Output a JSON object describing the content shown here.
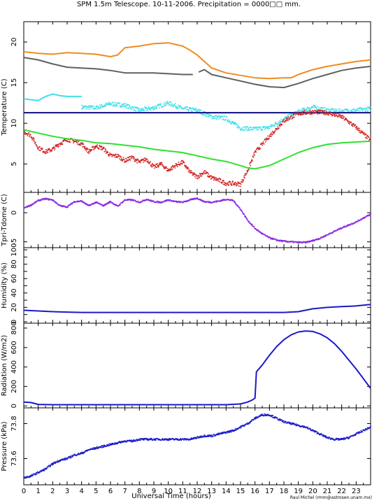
{
  "title": "SPM 1.5m Telescope. 10-11-2006. Precipitation = 0000□□ mm.",
  "credit": "Raul Michel (rmm@astrosen.unam.mx)",
  "xlabel": "Universal Time (hours)",
  "x_ticks": [
    0,
    1,
    2,
    3,
    4,
    5,
    6,
    7,
    8,
    9,
    10,
    11,
    12,
    13,
    14,
    15,
    16,
    17,
    18,
    19,
    20,
    21,
    22,
    23
  ],
  "colors": {
    "orange": "#f08c1e",
    "gray": "#606060",
    "cyan": "#40e0e8",
    "navy": "#101080",
    "red": "#d02020",
    "green": "#30e030",
    "purple": "#8a2be2",
    "blue": "#1a1ac8",
    "frame": "#000000"
  },
  "chart_data": [
    {
      "type": "line",
      "ylabel": "Temperature (C)",
      "ylim": [
        1.5,
        22.5
      ],
      "y_ticks": [
        5,
        10,
        15,
        20
      ],
      "xlim": [
        0,
        24
      ],
      "series": [
        {
          "color_key": "orange",
          "style": "line",
          "x": [
            0,
            1,
            2,
            3,
            4,
            5,
            6,
            6.5,
            7,
            8,
            9,
            10,
            11,
            11.5,
            12,
            12.5,
            13,
            14,
            15,
            16,
            17,
            18,
            18.5,
            19,
            20,
            21,
            22,
            23,
            24
          ],
          "y": [
            18.8,
            18.6,
            18.5,
            18.7,
            18.6,
            18.5,
            18.2,
            18.4,
            19.3,
            19.5,
            19.8,
            19.9,
            19.5,
            19.0,
            18.4,
            17.6,
            16.8,
            16.2,
            15.9,
            15.6,
            15.5,
            15.6,
            15.6,
            16.0,
            16.6,
            17.0,
            17.3,
            17.6,
            17.8
          ]
        },
        {
          "color_key": "gray",
          "style": "line",
          "x": [
            0,
            1,
            2,
            3,
            4,
            5,
            6,
            7,
            8,
            9,
            10,
            11,
            11.7
          ],
          "y": [
            18.1,
            17.8,
            17.3,
            16.9,
            16.8,
            16.7,
            16.5,
            16.2,
            16.2,
            16.2,
            16.1,
            16.0,
            16.0
          ]
        },
        {
          "color_key": "gray",
          "style": "line",
          "x": [
            12.1,
            12.5,
            13,
            14,
            15,
            16,
            17,
            18,
            19,
            20,
            21,
            22,
            23,
            24
          ],
          "y": [
            16.3,
            16.6,
            16.0,
            15.6,
            15.2,
            14.8,
            14.5,
            14.4,
            14.9,
            15.5,
            16.0,
            16.5,
            16.8,
            17.0
          ]
        },
        {
          "color_key": "cyan",
          "style": "line",
          "x": [
            0,
            1,
            1.5,
            2,
            2.5,
            3,
            3.5,
            4
          ],
          "y": [
            13.0,
            12.8,
            13.3,
            13.6,
            13.4,
            13.3,
            13.3,
            13.3
          ]
        },
        {
          "color_key": "cyan",
          "style": "scatter",
          "x": [
            4,
            5,
            6,
            7,
            8,
            9,
            10,
            11,
            12,
            13,
            14,
            15,
            16,
            17,
            18,
            19,
            20,
            21,
            22,
            23,
            24
          ],
          "y": [
            12.0,
            11.9,
            12.4,
            12.2,
            11.6,
            11.9,
            12.5,
            11.8,
            11.6,
            10.8,
            10.6,
            9.4,
            9.3,
            9.5,
            10.5,
            11.4,
            12.0,
            11.6,
            11.5,
            11.6,
            11.8
          ]
        },
        {
          "color_key": "navy",
          "style": "line",
          "x": [
            0,
            24
          ],
          "y": [
            11.3,
            11.3
          ]
        },
        {
          "color_key": "red",
          "style": "scatter",
          "x": [
            0,
            0.5,
            1,
            1.5,
            2,
            2.5,
            3,
            3.5,
            4,
            4.5,
            5,
            5.5,
            6,
            6.5,
            7,
            7.5,
            8,
            8.5,
            9,
            9.5,
            10,
            10.5,
            11,
            11.5,
            12,
            12.5,
            13,
            13.5,
            14,
            14.5,
            15,
            15.5,
            16,
            17,
            18,
            19,
            20,
            21,
            22,
            23,
            24
          ],
          "y": [
            9.0,
            8.5,
            7.0,
            6.5,
            6.8,
            7.5,
            8.0,
            7.8,
            7.5,
            6.5,
            7.2,
            6.9,
            6.0,
            6.0,
            5.4,
            5.8,
            5.2,
            5.6,
            4.6,
            5.0,
            4.2,
            4.8,
            5.2,
            4.0,
            3.4,
            4.0,
            3.3,
            3.0,
            2.6,
            2.6,
            2.5,
            4.2,
            6.4,
            8.4,
            10.3,
            11.2,
            11.4,
            11.3,
            10.8,
            9.5,
            7.9
          ]
        },
        {
          "color_key": "green",
          "style": "line",
          "x": [
            0,
            1,
            2,
            3,
            4,
            5,
            6,
            7,
            8,
            9,
            10,
            11,
            12,
            13,
            14,
            15,
            15.5,
            16,
            17,
            18,
            19,
            20,
            21,
            22,
            23,
            24
          ],
          "y": [
            9.2,
            8.8,
            8.4,
            8.1,
            7.9,
            7.6,
            7.5,
            7.3,
            7.1,
            6.8,
            6.6,
            6.4,
            6.0,
            5.6,
            5.3,
            4.8,
            4.5,
            4.4,
            4.8,
            5.6,
            6.4,
            7.0,
            7.4,
            7.6,
            7.7,
            7.8
          ]
        }
      ]
    },
    {
      "type": "scatter",
      "ylabel": "Tpri-Tdome (C)",
      "ylim": [
        -6,
        3.5
      ],
      "y_ticks": [
        -5,
        0
      ],
      "xlim": [
        0,
        24
      ],
      "series": [
        {
          "color_key": "purple",
          "style": "scatter",
          "x": [
            0,
            0.5,
            1,
            1.5,
            2,
            2.5,
            3,
            3.5,
            4,
            4.5,
            5,
            5.5,
            6,
            6.5,
            7,
            7.5,
            8,
            8.5,
            9,
            9.5,
            10,
            10.5,
            11,
            11.5,
            12,
            12.5,
            13,
            13.5,
            14,
            14.5,
            15,
            15.5,
            16,
            16.5,
            17,
            17.5,
            18,
            18.5,
            19,
            19.5,
            20,
            20.5,
            21,
            21.5,
            22,
            22.5,
            23,
            23.5,
            24
          ],
          "y": [
            0.8,
            1.3,
            2.1,
            2.4,
            2.2,
            1.2,
            1.0,
            1.9,
            2.0,
            1.2,
            1.8,
            1.2,
            1.9,
            1.1,
            2.2,
            2.2,
            1.8,
            2.3,
            1.9,
            1.8,
            2.2,
            1.9,
            1.8,
            2.2,
            2.5,
            1.9,
            1.8,
            2.0,
            2.3,
            2.1,
            0.6,
            -1.3,
            -2.7,
            -3.6,
            -4.3,
            -4.7,
            -4.9,
            -5.0,
            -5.1,
            -5.1,
            -4.8,
            -4.4,
            -3.8,
            -3.2,
            -2.6,
            -2.1,
            -1.6,
            -0.9,
            -0.3
          ]
        }
      ]
    },
    {
      "type": "line",
      "ylabel": "Humidity (%)",
      "ylim": [
        -2,
        103
      ],
      "y_ticks": [
        0,
        10,
        20,
        30,
        40,
        50,
        60,
        70,
        80,
        90,
        100
      ],
      "y_tick_labels_shown": [
        "0",
        "20",
        "40",
        "60",
        "80",
        "100"
      ],
      "xlim": [
        0,
        24
      ],
      "series": [
        {
          "color_key": "blue",
          "style": "line",
          "x": [
            0,
            1,
            2,
            3,
            4,
            5,
            6,
            8,
            10,
            12,
            14,
            16,
            17,
            18,
            19,
            20,
            21,
            22,
            23,
            24
          ],
          "y": [
            16,
            15,
            14,
            13.5,
            13,
            13,
            13,
            13,
            13,
            13,
            13,
            13,
            13,
            13,
            14,
            18,
            20,
            21,
            22,
            24
          ]
        }
      ]
    },
    {
      "type": "line",
      "ylabel": "Radiation (W/m2)",
      "ylim": [
        -20,
        850
      ],
      "y_ticks": [
        0,
        200,
        400,
        600,
        800
      ],
      "xlim": [
        0,
        24
      ],
      "series": [
        {
          "color_key": "blue",
          "style": "line",
          "x": [
            0,
            0.5,
            1,
            2,
            4,
            6,
            8,
            10,
            12,
            14,
            15,
            15.5,
            15.8,
            16,
            16.1,
            16.5,
            17,
            17.5,
            18,
            18.5,
            19,
            19.5,
            20,
            20.5,
            21,
            21.5,
            22,
            22.5,
            23,
            23.5,
            24
          ],
          "y": [
            40,
            35,
            15,
            12,
            12,
            12,
            12,
            12,
            12,
            12,
            20,
            40,
            60,
            80,
            350,
            420,
            520,
            610,
            680,
            730,
            760,
            770,
            765,
            740,
            700,
            640,
            560,
            470,
            380,
            280,
            180
          ]
        }
      ]
    },
    {
      "type": "scatter",
      "ylabel": "Pressure (kPa)",
      "ylim": [
        73.45,
        73.89
      ],
      "y_ticks": [
        73.6,
        73.8
      ],
      "xlim": [
        0,
        24
      ],
      "series": [
        {
          "color_key": "blue",
          "style": "scatter",
          "x": [
            0,
            0.5,
            1,
            1.5,
            2,
            2.5,
            3,
            3.5,
            4,
            4.5,
            5,
            5.5,
            6,
            6.5,
            7,
            7.5,
            8,
            8.5,
            9,
            9.5,
            10,
            10.5,
            11,
            11.5,
            12,
            12.5,
            13,
            13.5,
            14,
            14.5,
            15,
            15.5,
            16,
            16.5,
            17,
            17.5,
            18,
            18.5,
            19,
            19.5,
            20,
            20.5,
            21,
            21.5,
            22,
            22.5,
            23,
            23.5,
            24
          ],
          "y": [
            73.49,
            73.5,
            73.52,
            73.54,
            73.57,
            73.59,
            73.6,
            73.62,
            73.63,
            73.65,
            73.66,
            73.67,
            73.68,
            73.69,
            73.7,
            73.7,
            73.71,
            73.71,
            73.71,
            73.71,
            73.71,
            73.71,
            73.71,
            73.71,
            73.72,
            73.73,
            73.73,
            73.74,
            73.75,
            73.76,
            73.78,
            73.8,
            73.83,
            73.85,
            73.85,
            73.83,
            73.81,
            73.8,
            73.79,
            73.78,
            73.76,
            73.74,
            73.72,
            73.71,
            73.71,
            73.72,
            73.74,
            73.76,
            73.78
          ]
        }
      ]
    }
  ]
}
